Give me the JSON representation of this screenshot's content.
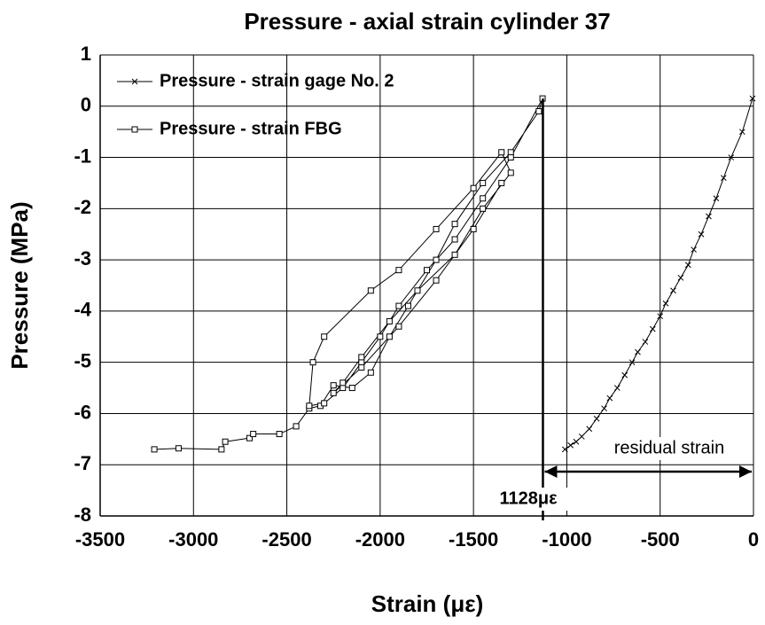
{
  "chart_data": {
    "type": "line",
    "title": "Pressure - axial strain cylinder 37",
    "xlabel": "Strain (με)",
    "ylabel": "Pressure (MPa)",
    "xlim": [
      -3500,
      0
    ],
    "xticks": [
      -3500,
      -3000,
      -2500,
      -2000,
      -1500,
      -1000,
      -500,
      0
    ],
    "ylim": [
      -8,
      1
    ],
    "yticks": [
      -8,
      -7,
      -6,
      -5,
      -4,
      -3,
      -2,
      -1,
      0,
      1
    ],
    "grid": true,
    "legend": "upper left",
    "series": [
      {
        "name": "Pressure - strain gage No. 2",
        "color": "#000000",
        "marker": "x",
        "x": [
          -5,
          -60,
          -120,
          -160,
          -200,
          -240,
          -280,
          -320,
          -350,
          -390,
          -430,
          -470,
          -500,
          -540,
          -580,
          -620,
          -650,
          -690,
          -730,
          -770,
          -800,
          -840,
          -880,
          -920,
          -950,
          -980,
          -1010
        ],
        "values": [
          0.15,
          -0.5,
          -1.0,
          -1.4,
          -1.8,
          -2.15,
          -2.5,
          -2.8,
          -3.1,
          -3.35,
          -3.6,
          -3.85,
          -4.1,
          -4.35,
          -4.6,
          -4.8,
          -5.0,
          -5.25,
          -5.5,
          -5.7,
          -5.9,
          -6.1,
          -6.3,
          -6.45,
          -6.55,
          -6.62,
          -6.7
        ]
      },
      {
        "name": "Pressure - strain FBG",
        "color": "#000000",
        "marker": "square",
        "x": [
          -3210,
          -3080,
          -2850,
          -2830,
          -2700,
          -2680,
          -2540,
          -2450,
          -2380,
          -2320,
          -2250,
          -2150,
          -2050,
          -1950,
          -1850,
          -1700,
          -1600,
          -1450,
          -1300,
          -1150,
          -1130,
          -1300,
          -1450,
          -1600,
          -1750,
          -1900,
          -2000,
          -2100,
          -2200,
          -2300,
          -2380,
          -2360,
          -2300,
          -2050,
          -1900,
          -1700,
          -1500,
          -1350,
          -1300,
          -1450,
          -1600,
          -1800,
          -1950,
          -2100,
          -2200,
          -2250,
          -2100,
          -1900,
          -1700,
          -1500,
          -1350
        ],
        "values": [
          -6.7,
          -6.68,
          -6.7,
          -6.55,
          -6.48,
          -6.4,
          -6.4,
          -6.25,
          -5.9,
          -5.85,
          -5.45,
          -5.5,
          -5.2,
          -4.5,
          -3.9,
          -3.0,
          -2.3,
          -1.5,
          -0.9,
          -0.1,
          0.15,
          -1.0,
          -1.8,
          -2.6,
          -3.2,
          -3.9,
          -4.5,
          -5.0,
          -5.5,
          -5.8,
          -5.85,
          -5.0,
          -4.5,
          -3.6,
          -3.2,
          -2.4,
          -1.6,
          -0.9,
          -1.3,
          -2.0,
          -2.9,
          -3.6,
          -4.2,
          -4.9,
          -5.4,
          -5.6,
          -5.1,
          -4.3,
          -3.4,
          -2.4,
          -1.5
        ]
      }
    ],
    "residual_strain": {
      "label": "residual strain",
      "value": -1128,
      "value_label": "1128με"
    }
  }
}
